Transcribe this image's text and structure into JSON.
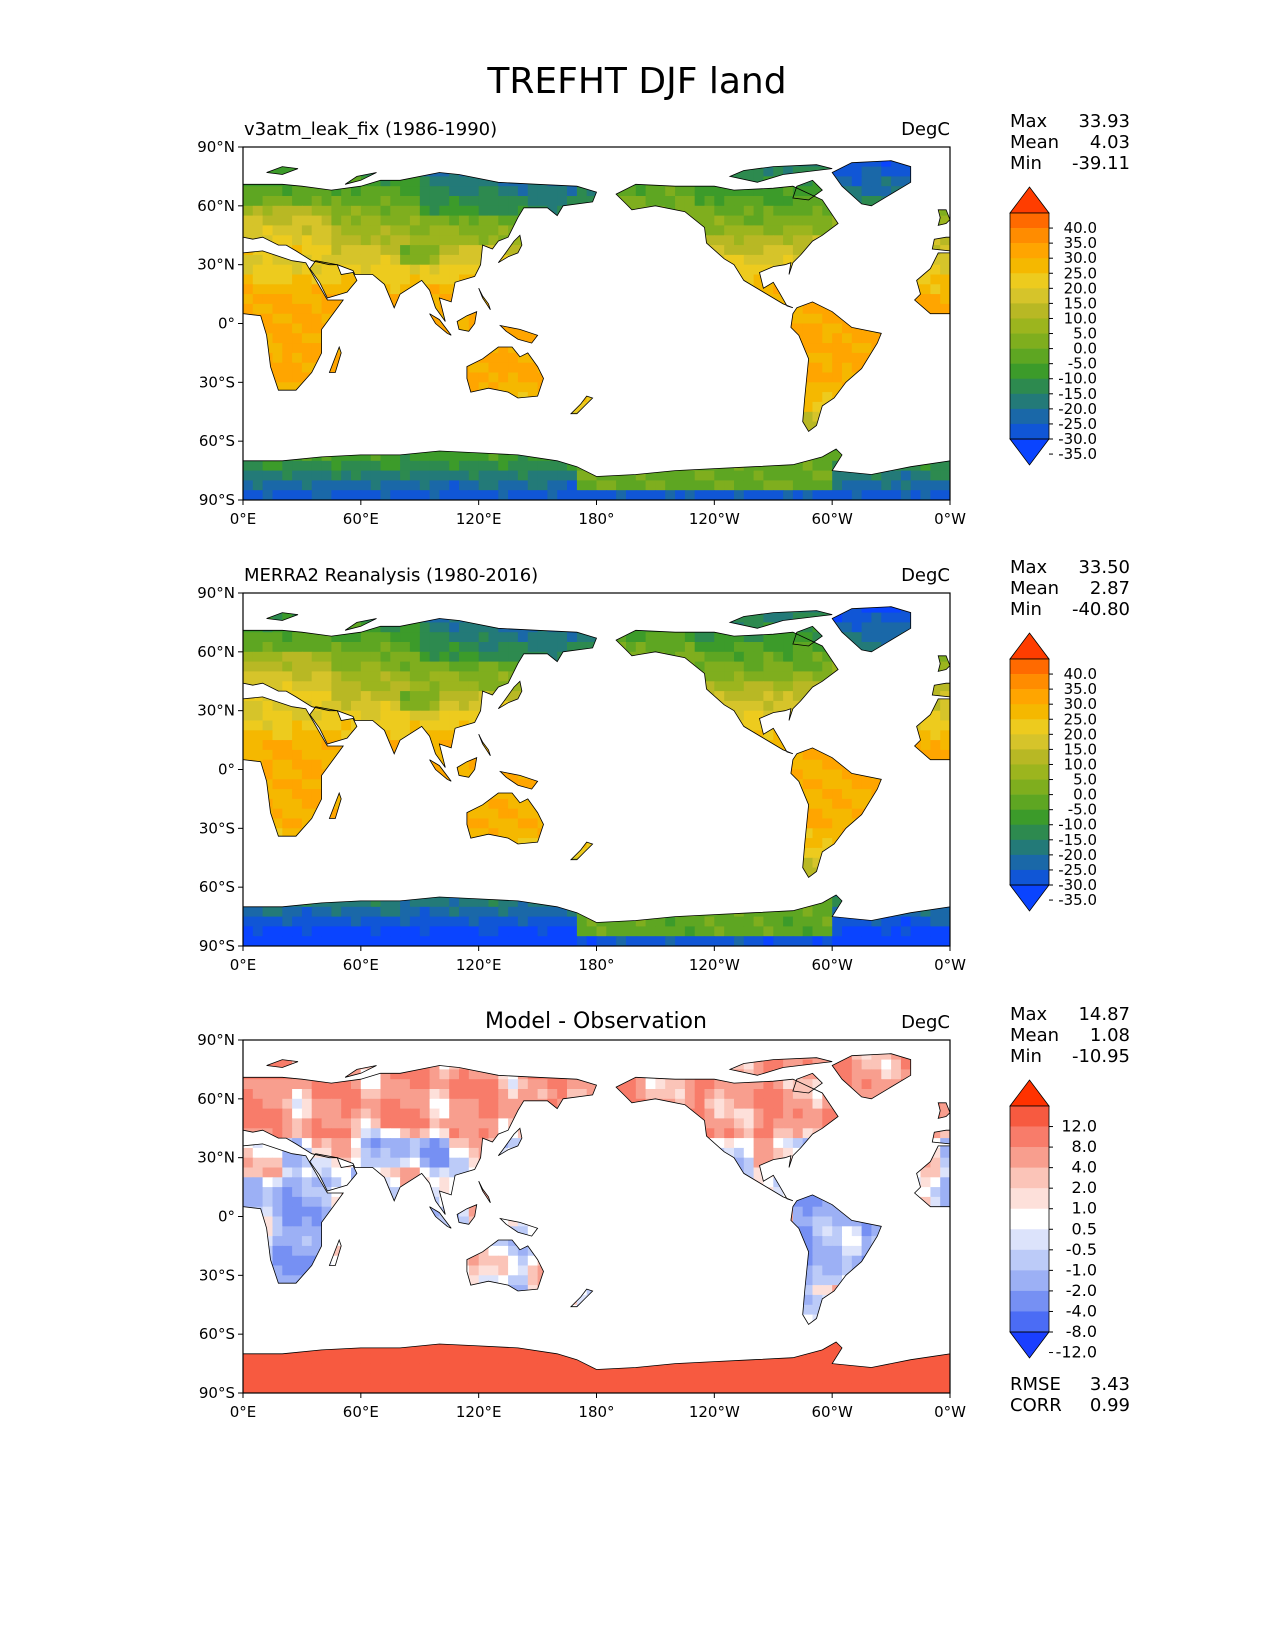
{
  "title": "TREFHT DJF land",
  "x_ticks": [
    "0°E",
    "60°E",
    "120°E",
    "180°",
    "120°W",
    "60°W",
    "0°W"
  ],
  "y_ticks": [
    "90°N",
    "60°N",
    "30°N",
    "0°",
    "30°S",
    "60°S",
    "90°S"
  ],
  "chart_data": [
    {
      "type": "heatmap",
      "title": "v3atm_leak_fix (1986-1990)",
      "units": "DegC",
      "xlim": [
        0,
        360
      ],
      "ylim": [
        -90,
        90
      ],
      "stats": {
        "labels": [
          "Max",
          "Mean",
          "Min"
        ],
        "values": [
          "33.93",
          "4.03",
          "-39.11"
        ]
      },
      "colorbar": {
        "levels": [
          "40.0",
          "35.0",
          "30.0",
          "25.0",
          "20.0",
          "15.0",
          "10.0",
          "5.0",
          "0.0",
          "-5.0",
          "-10.0",
          "-15.0",
          "-20.0",
          "-25.0",
          "-30.0",
          "-35.0"
        ],
        "colors": [
          "#ff3d00",
          "#ff6a00",
          "#ff8c00",
          "#ffa500",
          "#f5b800",
          "#edcb1e",
          "#d6c42a",
          "#b8b824",
          "#9cb51e",
          "#7fae1e",
          "#5ea622",
          "#3c9b2a",
          "#2d8a4f",
          "#237a78",
          "#1a68a8",
          "#1056d6",
          "#0a44ff"
        ],
        "extend": "both"
      }
    },
    {
      "type": "heatmap",
      "title": "MERRA2 Reanalysis (1980-2016)",
      "units": "DegC",
      "xlim": [
        0,
        360
      ],
      "ylim": [
        -90,
        90
      ],
      "stats": {
        "labels": [
          "Max",
          "Mean",
          "Min"
        ],
        "values": [
          "33.50",
          "2.87",
          "-40.80"
        ]
      },
      "colorbar": {
        "levels": [
          "40.0",
          "35.0",
          "30.0",
          "25.0",
          "20.0",
          "15.0",
          "10.0",
          "5.0",
          "0.0",
          "-5.0",
          "-10.0",
          "-15.0",
          "-20.0",
          "-25.0",
          "-30.0",
          "-35.0"
        ],
        "colors": [
          "#ff3d00",
          "#ff6a00",
          "#ff8c00",
          "#ffa500",
          "#f5b800",
          "#edcb1e",
          "#d6c42a",
          "#b8b824",
          "#9cb51e",
          "#7fae1e",
          "#5ea622",
          "#3c9b2a",
          "#2d8a4f",
          "#237a78",
          "#1a68a8",
          "#1056d6",
          "#0a44ff"
        ],
        "extend": "both"
      }
    },
    {
      "type": "heatmap",
      "title": "Model - Observation",
      "units": "DegC",
      "xlim": [
        0,
        360
      ],
      "ylim": [
        -90,
        90
      ],
      "stats": {
        "labels": [
          "Max",
          "Mean",
          "Min"
        ],
        "values": [
          "14.87",
          "1.08",
          "-10.95"
        ]
      },
      "colorbar": {
        "levels": [
          "12.0",
          "8.0",
          "4.0",
          "2.0",
          "1.0",
          "0.5",
          "-0.5",
          "-1.0",
          "-2.0",
          "-4.0",
          "-8.0",
          "-12.0"
        ],
        "colors": [
          "#ff3200",
          "#f75a40",
          "#f87c6a",
          "#f89e8e",
          "#fbc4b8",
          "#fde0da",
          "#ffffff",
          "#dce3fb",
          "#bccbf8",
          "#9cb0f5",
          "#7690f3",
          "#4b6cf5",
          "#1a3fff"
        ],
        "extend": "both"
      },
      "metrics": {
        "labels": [
          "RMSE",
          "CORR"
        ],
        "values": [
          "3.43",
          "0.99"
        ]
      }
    }
  ]
}
